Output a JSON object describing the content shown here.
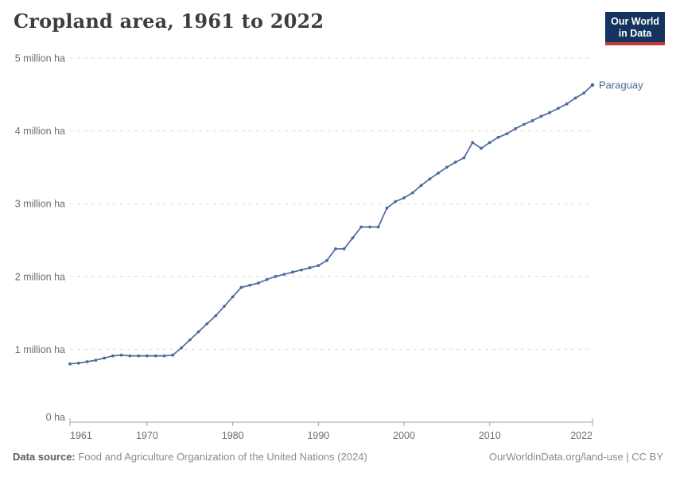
{
  "header": {
    "title": "Cropland area, 1961 to 2022",
    "logo": {
      "line1": "Our World",
      "line2": "in Data"
    }
  },
  "colors": {
    "series_line": "#4C6A9C",
    "logo_background": "#15335F",
    "logo_underline": "#C43A33",
    "gridline": "#dcdcdc",
    "axis": "#a3a3a3",
    "axis_label": "#6e6e6e"
  },
  "chart_data": {
    "type": "line",
    "title": "Cropland area, 1961 to 2022",
    "unit": "million ha",
    "xlim": [
      1961,
      2022
    ],
    "ylim": [
      0,
      5
    ],
    "grid": "horizontal dashed",
    "legend_position": "end-of-line label",
    "x_ticks": [
      1961,
      1970,
      1980,
      1990,
      2000,
      2010,
      2022
    ],
    "y_ticks": [
      {
        "value": 0,
        "label": "0 ha"
      },
      {
        "value": 1,
        "label": "1 million ha"
      },
      {
        "value": 2,
        "label": "2 million ha"
      },
      {
        "value": 3,
        "label": "3 million ha"
      },
      {
        "value": 4,
        "label": "4 million ha"
      },
      {
        "value": 5,
        "label": "5 million ha"
      }
    ],
    "series": [
      {
        "name": "Paraguay",
        "color": "#4C6A9C",
        "x": [
          1961,
          1962,
          1963,
          1964,
          1965,
          1966,
          1967,
          1968,
          1969,
          1970,
          1971,
          1972,
          1973,
          1974,
          1975,
          1976,
          1977,
          1978,
          1979,
          1980,
          1981,
          1982,
          1983,
          1984,
          1985,
          1986,
          1987,
          1988,
          1989,
          1990,
          1991,
          1992,
          1993,
          1994,
          1995,
          1996,
          1997,
          1998,
          1999,
          2000,
          2001,
          2002,
          2003,
          2004,
          2005,
          2006,
          2007,
          2008,
          2009,
          2010,
          2011,
          2012,
          2013,
          2014,
          2015,
          2016,
          2017,
          2018,
          2019,
          2020,
          2021,
          2022
        ],
        "values": [
          0.8,
          0.81,
          0.83,
          0.85,
          0.88,
          0.91,
          0.92,
          0.91,
          0.91,
          0.91,
          0.91,
          0.91,
          0.92,
          1.02,
          1.13,
          1.24,
          1.35,
          1.46,
          1.59,
          1.72,
          1.85,
          1.88,
          1.91,
          1.96,
          2.0,
          2.03,
          2.06,
          2.09,
          2.12,
          2.15,
          2.22,
          2.38,
          2.38,
          2.53,
          2.68,
          2.68,
          2.68,
          2.94,
          3.03,
          3.08,
          3.15,
          3.25,
          3.34,
          3.42,
          3.5,
          3.57,
          3.63,
          3.84,
          3.76,
          3.84,
          3.91,
          3.96,
          4.03,
          4.09,
          4.14,
          4.2,
          4.25,
          4.31,
          4.37,
          4.45,
          4.52,
          4.63
        ]
      }
    ]
  },
  "footer": {
    "source_label": "Data source:",
    "source_text": " Food and Agriculture Organization of the United Nations (2024)",
    "credit": "OurWorldinData.org/land-use | CC BY"
  }
}
